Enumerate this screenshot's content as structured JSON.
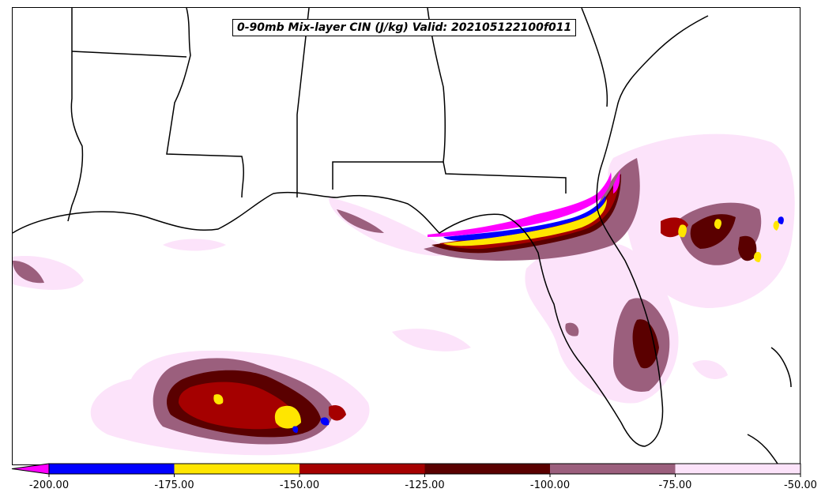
{
  "title": "0-90mb Mix-layer CIN (J/kg) Valid: 202105122100f011",
  "colorbar": {
    "ticks": [
      "-200.00",
      "-175.00",
      "-150.00",
      "-125.00",
      "-100.00",
      "-75.00",
      "-50.00"
    ],
    "bins": [
      {
        "from": -225,
        "to": -200,
        "color": "#ff00ff"
      },
      {
        "from": -200,
        "to": -175,
        "color": "#0000ff"
      },
      {
        "from": -175,
        "to": -150,
        "color": "#ffe600"
      },
      {
        "from": -150,
        "to": -125,
        "color": "#a50000"
      },
      {
        "from": -125,
        "to": -100,
        "color": "#5a0000"
      },
      {
        "from": -100,
        "to": -75,
        "color": "#9b5f7d"
      },
      {
        "from": -75,
        "to": -50,
        "color": "#fce3fa"
      }
    ],
    "extend": "min"
  },
  "colors": {
    "border": "#000000",
    "light_pink": "#fce3fa",
    "mauve": "#9b5f7d",
    "dark_maroon": "#5a0000",
    "red": "#a50000",
    "yellow": "#ffe600",
    "blue": "#0000ff",
    "magenta": "#ff00ff"
  }
}
